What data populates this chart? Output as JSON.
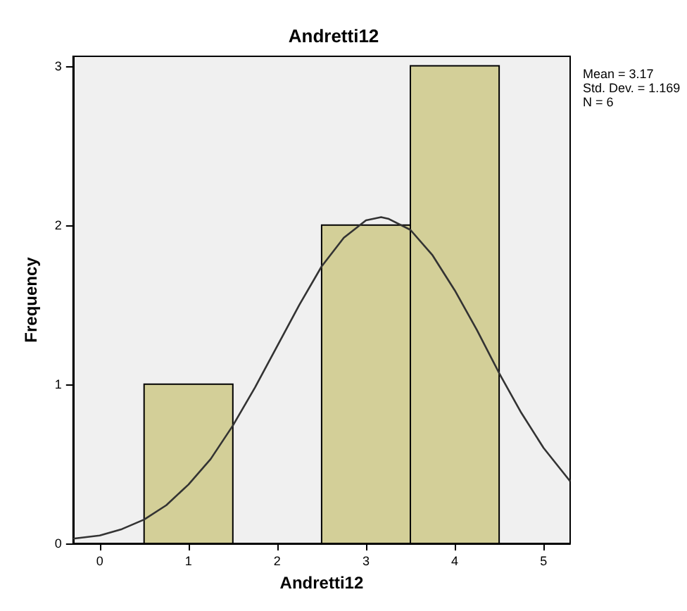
{
  "chart_data": {
    "type": "histogram",
    "title": "Andretti12",
    "xlabel": "Andretti12",
    "ylabel": "Frequency",
    "bins": [
      0.5,
      1.5,
      2.5,
      3.5,
      4.5
    ],
    "values": [
      1,
      0,
      2,
      3
    ],
    "color": "#d3cf98",
    "series": [
      {
        "type": "line",
        "color": "#333333",
        "x": [
          -0.3,
          0,
          0.25,
          0.5,
          0.75,
          1,
          1.25,
          1.5,
          1.75,
          2,
          2.25,
          2.5,
          2.75,
          3,
          3.17,
          3.25,
          3.5,
          3.75,
          4,
          4.25,
          4.5,
          4.75,
          5,
          5.3
        ],
        "values": [
          0.03,
          0.05,
          0.09,
          0.15,
          0.24,
          0.37,
          0.53,
          0.74,
          0.98,
          1.24,
          1.5,
          1.74,
          1.92,
          2.03,
          2.05,
          2.04,
          1.97,
          1.81,
          1.59,
          1.34,
          1.07,
          0.82,
          0.6,
          0.39
        ]
      }
    ],
    "xlim": [
      -0.3,
      5.3
    ],
    "xticks": [
      0,
      1,
      2,
      3,
      4,
      5
    ],
    "ylim": [
      0,
      3.06
    ],
    "yticks": [
      0,
      1,
      2,
      3
    ],
    "annotations": [
      "Mean = 3.17",
      "Std. Dev. = 1.169",
      "N = 6"
    ],
    "grid": false,
    "marker": "none",
    "line_style": "solid"
  }
}
